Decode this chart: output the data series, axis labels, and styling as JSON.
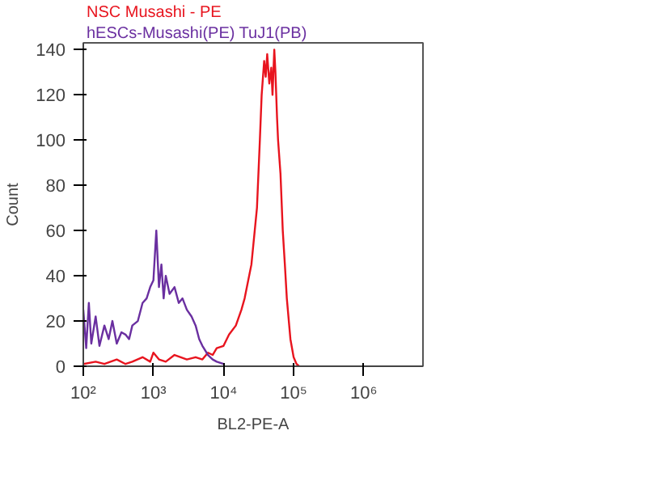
{
  "chart_data": {
    "type": "line",
    "xlabel": "BL2-PE-A",
    "ylabel": "Count",
    "log": "x",
    "grid": false,
    "line_style": "solid",
    "marker": "none",
    "xlim": [
      100,
      7000000
    ],
    "xticks": [
      {
        "value": 100,
        "label": "10²"
      },
      {
        "value": 1000,
        "label": "10³"
      },
      {
        "value": 10000,
        "label": "10⁴"
      },
      {
        "value": 100000,
        "label": "10⁵"
      },
      {
        "value": 1000000,
        "label": "10⁶"
      }
    ],
    "ylim": [
      0,
      143
    ],
    "yticks": [
      0,
      20,
      40,
      60,
      80,
      100,
      120,
      140
    ],
    "series": [
      {
        "name": "NSC Musashi - PE",
        "color": "#e8141e",
        "x": [
          100,
          150,
          200,
          300,
          400,
          500,
          700,
          900,
          1000,
          1200,
          1500,
          2000,
          3000,
          4000,
          5000,
          6000,
          7000,
          8000,
          10000,
          12000,
          15000,
          18000,
          20000,
          25000,
          30000,
          33000,
          35000,
          38000,
          40000,
          42000,
          45000,
          48000,
          50000,
          53000,
          55000,
          58000,
          60000,
          65000,
          70000,
          75000,
          80000,
          90000,
          100000,
          110000,
          120000
        ],
        "values": [
          1,
          2,
          1,
          3,
          1,
          2,
          4,
          2,
          6,
          3,
          2,
          5,
          3,
          4,
          3,
          6,
          5,
          8,
          9,
          14,
          18,
          25,
          30,
          45,
          70,
          100,
          120,
          135,
          128,
          138,
          125,
          132,
          120,
          140,
          130,
          110,
          100,
          85,
          60,
          45,
          30,
          12,
          4,
          1,
          0
        ]
      },
      {
        "name": "hESCs-Musashi(PE) TuJ1(PB)",
        "color": "#6a2fa0",
        "x": [
          100,
          110,
          120,
          130,
          150,
          170,
          200,
          230,
          260,
          300,
          350,
          400,
          450,
          500,
          600,
          700,
          800,
          900,
          1000,
          1100,
          1200,
          1300,
          1400,
          1500,
          1700,
          2000,
          2300,
          2600,
          3000,
          3500,
          4000,
          4500,
          5000,
          6000,
          7000,
          8000,
          10000
        ],
        "values": [
          25,
          8,
          28,
          10,
          22,
          9,
          18,
          12,
          20,
          10,
          15,
          14,
          12,
          18,
          20,
          28,
          30,
          35,
          38,
          60,
          35,
          45,
          30,
          40,
          32,
          35,
          28,
          30,
          25,
          22,
          18,
          12,
          9,
          5,
          3,
          2,
          1
        ]
      }
    ]
  }
}
